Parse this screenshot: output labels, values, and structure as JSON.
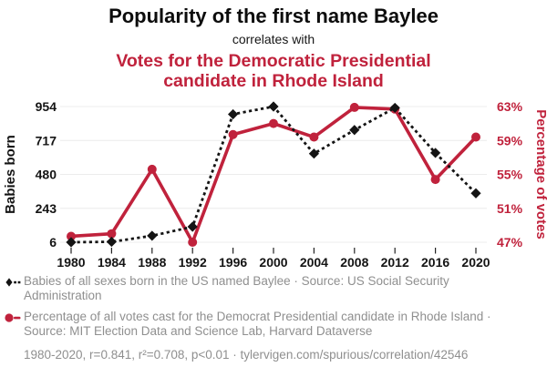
{
  "header": {
    "title": "Popularity of the first name Baylee",
    "connector": "correlates with",
    "subtitle": "Votes for the Democratic Presidential candidate in Rhode Island"
  },
  "colors": {
    "accent_red": "#c0223c",
    "series_black": "#141414",
    "legend_gray": "#8f8f8f",
    "gridline": "#ececec"
  },
  "chart_data": {
    "type": "line",
    "title": "Popularity of the first name Baylee correlates with Votes for the Democratic Presidential candidate in Rhode Island",
    "x": [
      1980,
      1984,
      1988,
      1992,
      1996,
      2000,
      2004,
      2008,
      2012,
      2016,
      2020
    ],
    "xlabel": "",
    "series": [
      {
        "name": "Babies of all sexes born in the US named Baylee",
        "axis": "left",
        "style": "dashed",
        "marker": "diamond",
        "color": "#141414",
        "values": [
          6,
          9,
          51,
          114,
          900,
          954,
          625,
          790,
          945,
          630,
          348
        ]
      },
      {
        "name": "Percentage of all votes cast for the Democrat Presidential candidate in Rhode Island",
        "axis": "right",
        "style": "solid",
        "marker": "circle",
        "color": "#c0223c",
        "values": [
          47.7,
          48.0,
          55.6,
          47.0,
          59.7,
          61.0,
          59.4,
          62.9,
          62.7,
          54.4,
          59.4
        ]
      }
    ],
    "left_axis": {
      "label": "Babies born",
      "ticks": [
        6,
        243,
        480,
        717,
        954
      ],
      "range": [
        6,
        954
      ]
    },
    "right_axis": {
      "label": "Percentage of votes",
      "tick_labels": [
        "47%",
        "51%",
        "55%",
        "59%",
        "63%"
      ],
      "tick_values": [
        47,
        51,
        55,
        59,
        63
      ],
      "range": [
        47,
        63
      ]
    },
    "grid": true,
    "legend_position": "bottom"
  },
  "legend": {
    "items": [
      {
        "label": "Babies of all sexes born in the US named Baylee · Source: US Social Security Administration"
      },
      {
        "label": "Percentage of all votes cast for the Democrat Presidential candidate in Rhode Island · Source: MIT Election Data and Science Lab, Harvard Dataverse"
      }
    ],
    "footnote": "1980-2020, r=0.841, r²=0.708, p<0.01 · tylervigen.com/spurious/correlation/42546"
  }
}
